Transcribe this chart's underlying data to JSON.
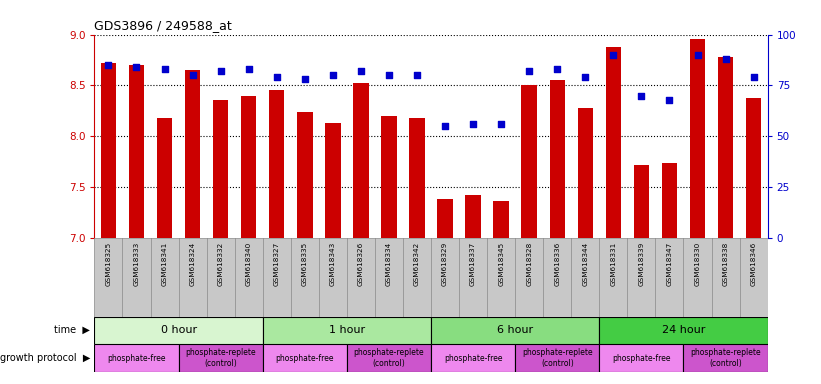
{
  "title": "GDS3896 / 249588_at",
  "samples": [
    "GSM618325",
    "GSM618333",
    "GSM618341",
    "GSM618324",
    "GSM618332",
    "GSM618340",
    "GSM618327",
    "GSM618335",
    "GSM618343",
    "GSM618326",
    "GSM618334",
    "GSM618342",
    "GSM618329",
    "GSM618337",
    "GSM618345",
    "GSM618328",
    "GSM618336",
    "GSM618344",
    "GSM618331",
    "GSM618339",
    "GSM618347",
    "GSM618330",
    "GSM618338",
    "GSM618346"
  ],
  "transformed_count": [
    8.72,
    8.7,
    8.18,
    8.65,
    8.36,
    8.4,
    8.46,
    8.24,
    8.13,
    8.52,
    8.2,
    8.18,
    7.38,
    7.42,
    7.36,
    8.5,
    8.55,
    8.28,
    8.88,
    7.72,
    7.74,
    8.96,
    8.78,
    8.38
  ],
  "percentile_rank": [
    85,
    84,
    83,
    80,
    82,
    83,
    79,
    78,
    80,
    82,
    80,
    80,
    55,
    56,
    56,
    82,
    83,
    79,
    90,
    70,
    68,
    90,
    88,
    79
  ],
  "ylim_left": [
    7,
    9
  ],
  "ylim_right": [
    0,
    100
  ],
  "yticks_left": [
    7,
    7.5,
    8,
    8.5,
    9
  ],
  "yticks_right": [
    0,
    25,
    50,
    75,
    100
  ],
  "bar_color": "#cc0000",
  "dot_color": "#0000cc",
  "time_groups": [
    {
      "label": "0 hour",
      "start": 0,
      "end": 6,
      "color": "#d8f5d0"
    },
    {
      "label": "1 hour",
      "start": 6,
      "end": 12,
      "color": "#aae8a0"
    },
    {
      "label": "6 hour",
      "start": 12,
      "end": 18,
      "color": "#88dd80"
    },
    {
      "label": "24 hour",
      "start": 18,
      "end": 24,
      "color": "#44cc44"
    }
  ],
  "protocol_groups": [
    {
      "label": "phosphate-free",
      "start": 0,
      "end": 3,
      "color": "#ee88ee"
    },
    {
      "label": "phosphate-replete\n(control)",
      "start": 3,
      "end": 6,
      "color": "#cc55cc"
    },
    {
      "label": "phosphate-free",
      "start": 6,
      "end": 9,
      "color": "#ee88ee"
    },
    {
      "label": "phosphate-replete\n(control)",
      "start": 9,
      "end": 12,
      "color": "#cc55cc"
    },
    {
      "label": "phosphate-free",
      "start": 12,
      "end": 15,
      "color": "#ee88ee"
    },
    {
      "label": "phosphate-replete\n(control)",
      "start": 15,
      "end": 18,
      "color": "#cc55cc"
    },
    {
      "label": "phosphate-free",
      "start": 18,
      "end": 21,
      "color": "#ee88ee"
    },
    {
      "label": "phosphate-replete\n(control)",
      "start": 21,
      "end": 24,
      "color": "#cc55cc"
    }
  ],
  "tick_color_left": "#cc0000",
  "tick_color_right": "#0000cc",
  "background_color": "#ffffff",
  "label_bg_color": "#c8c8c8",
  "label_border_color": "#888888",
  "n_samples": 24
}
